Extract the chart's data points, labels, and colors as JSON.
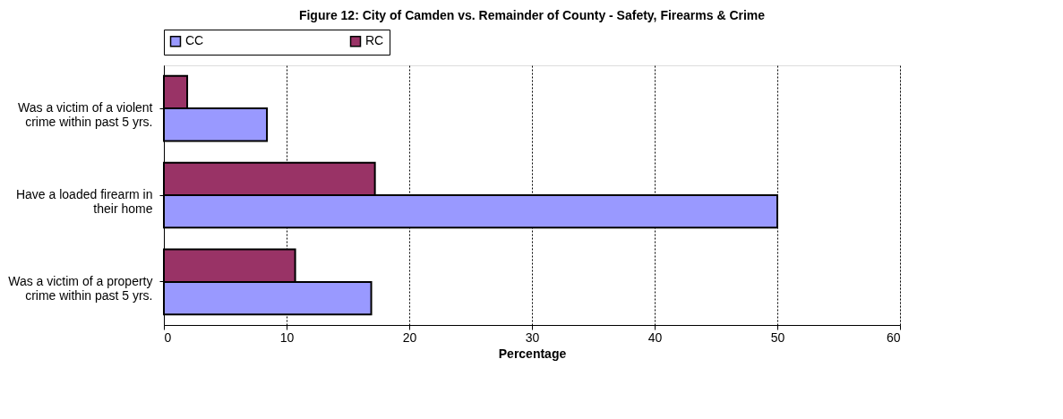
{
  "chart_data": {
    "type": "bar",
    "orientation": "horizontal",
    "title": "Figure 12:   City of Camden vs. Remainder of County - Safety, Firearms & Crime",
    "categories": [
      "Was a victim of a violent\ncrime within past 5 yrs.",
      "Have a loaded firearm in\ntheir home",
      "Was a victim of a property\ncrime within past 5 yrs."
    ],
    "series": [
      {
        "name": "CC",
        "color": "#9999ff",
        "values": [
          8.4,
          50,
          16.9
        ]
      },
      {
        "name": "RC",
        "color": "#993366",
        "values": [
          1.9,
          17.2,
          10.7
        ]
      }
    ],
    "xlabel": "Percentage",
    "xlim": [
      0,
      60
    ],
    "xticks": [
      0,
      10,
      20,
      30,
      40,
      50,
      60
    ],
    "grid": "x",
    "legend": "top"
  }
}
